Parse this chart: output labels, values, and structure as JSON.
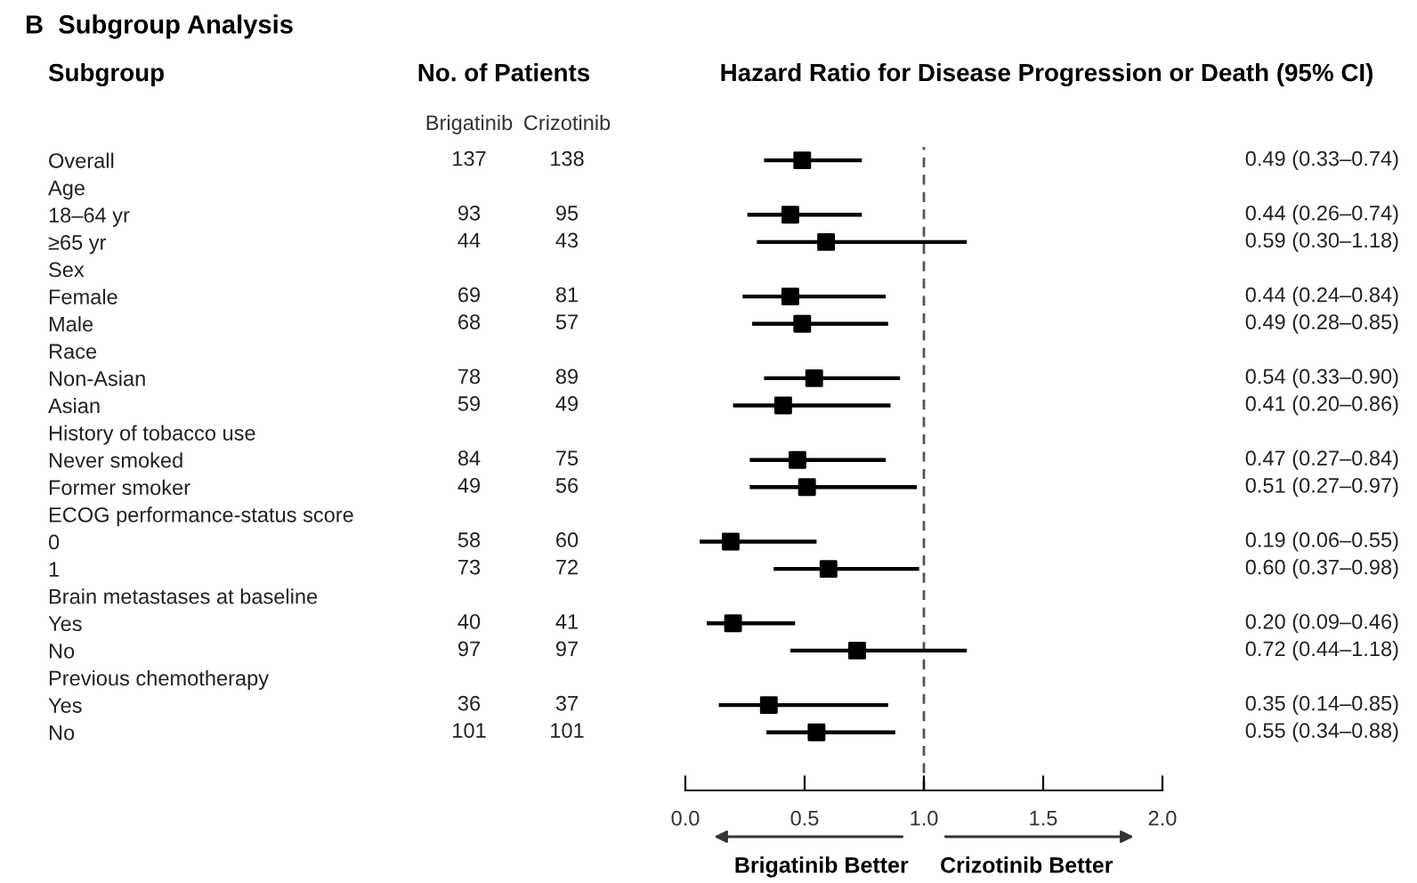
{
  "chart_data": [
    {
      "type": "heatmap",
      "data_labels": true,
      "title": "B  Subgroup Analysis",
      "ylabel": "Subgroup",
      "subtitle": "No. of Patients",
      "categories": [
        "Brigatinib",
        "Crizotinib"
      ],
      "y_categories": [
        "Overall",
        "Age",
        "18–64 yr",
        "≥65 yr",
        "Sex",
        "Female",
        "Male",
        "Race",
        "Non-Asian",
        "Asian",
        "History of tobacco use",
        "Never smoked",
        "Former smoker",
        "ECOG performance-status score",
        "0",
        "1",
        "Brain metastases at baseline",
        "Yes",
        "No",
        "Previous chemotherapy",
        "Yes",
        "No"
      ],
      "cells": [
        [
          137,
          138
        ],
        [
          null,
          null
        ],
        [
          93,
          95
        ],
        [
          44,
          43
        ],
        [
          null,
          null
        ],
        [
          69,
          81
        ],
        [
          68,
          57
        ],
        [
          null,
          null
        ],
        [
          78,
          89
        ],
        [
          59,
          49
        ],
        [
          null,
          null
        ],
        [
          84,
          75
        ],
        [
          49,
          56
        ],
        [
          null,
          null
        ],
        [
          58,
          60
        ],
        [
          73,
          72
        ],
        [
          null,
          null
        ],
        [
          40,
          41
        ],
        [
          97,
          97
        ],
        [
          null,
          null
        ],
        [
          36,
          37
        ],
        [
          101,
          101
        ]
      ]
    },
    {
      "type": "scatter",
      "title": "Hazard Ratio for Disease Progression or Death (95% CI)",
      "orientation": "horizontal",
      "tick_labels": "x",
      "categories": [
        null,
        null,
        null,
        null,
        null,
        null,
        null,
        null,
        null,
        null,
        null,
        null,
        null,
        null,
        null,
        null,
        null,
        null,
        null,
        null,
        null,
        null
      ],
      "values": [
        0.49,
        null,
        0.44,
        0.59,
        null,
        0.44,
        0.49,
        null,
        0.54,
        0.41,
        null,
        0.47,
        0.51,
        null,
        0.19,
        0.6,
        null,
        0.2,
        0.72,
        null,
        0.35,
        0.55
      ],
      "errors": [
        [
          0.33,
          0.74
        ],
        null,
        [
          0.26,
          0.74
        ],
        [
          0.3,
          1.18
        ],
        null,
        [
          0.24,
          0.84
        ],
        [
          0.28,
          0.85
        ],
        null,
        [
          0.33,
          0.9
        ],
        [
          0.2,
          0.86
        ],
        null,
        [
          0.27,
          0.84
        ],
        [
          0.27,
          0.97
        ],
        null,
        [
          0.06,
          0.55
        ],
        [
          0.37,
          0.98
        ],
        null,
        [
          0.09,
          0.46
        ],
        [
          0.44,
          1.18
        ],
        null,
        [
          0.14,
          0.85
        ],
        [
          0.34,
          0.88
        ]
      ],
      "value_labels": [
        "0.49 (0.33–0.74)",
        null,
        "0.44 (0.26–0.74)",
        "0.59 (0.30–1.18)",
        null,
        "0.44 (0.24–0.84)",
        "0.49 (0.28–0.85)",
        null,
        "0.54 (0.33–0.90)",
        "0.41 (0.20–0.86)",
        null,
        "0.47 (0.27–0.84)",
        "0.51 (0.27–0.97)",
        null,
        "0.19 (0.06–0.55)",
        "0.60 (0.37–0.98)",
        null,
        "0.20 (0.09–0.46)",
        "0.72 (0.44–1.18)",
        null,
        "0.35 (0.14–0.85)",
        "0.55 (0.34–0.88)"
      ],
      "color": "#000000",
      "marker": "square",
      "grid": false,
      "legend": false,
      "xlim": [
        0,
        2
      ],
      "xticks": [
        {
          "value": 0,
          "label": "0.0"
        },
        0.5,
        {
          "value": 1,
          "label": "1.0"
        },
        1.5,
        {
          "value": 2,
          "label": "2.0"
        }
      ],
      "ref_lines": [
        {
          "axis": "x",
          "value": 1,
          "color": "#555555",
          "line_style": "dashed"
        }
      ],
      "annotations": [
        "Brigatinib Better",
        "Crizotinib Better"
      ]
    }
  ]
}
